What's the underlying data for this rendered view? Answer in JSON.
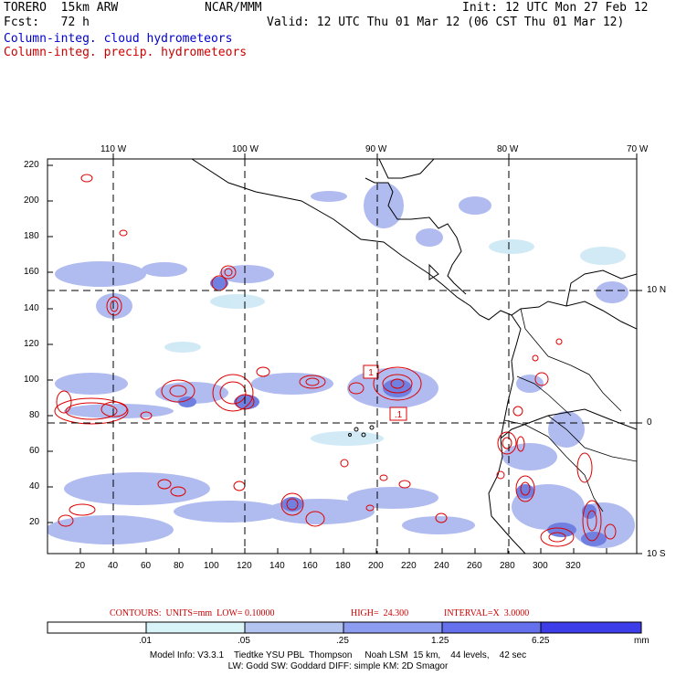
{
  "header": {
    "model_name": "TORERO  15km ARW",
    "org": "NCAR/MMM",
    "init": "Init: 12 UTC Mon 27 Feb 12",
    "fcst": "Fcst:   72 h",
    "valid": "Valid: 12 UTC Thu 01 Mar 12 (06 CST Thu 01 Mar 12)",
    "field_cloud": "Column-integ. cloud hydrometeors",
    "field_precip": "Column-integ. precip. hydrometeors"
  },
  "map": {
    "lon_labels": [
      "110 W",
      "100 W",
      "90 W",
      "80 W",
      "70 W"
    ],
    "lat_labels": [
      "10 N",
      "0",
      "10 S"
    ],
    "x_ticks": [
      "20",
      "40",
      "60",
      "80",
      "100",
      "120",
      "140",
      "160",
      "180",
      "200",
      "220",
      "240",
      "260",
      "280",
      "300",
      "320"
    ],
    "y_ticks": [
      "220",
      "200",
      "180",
      "160",
      "140",
      "120",
      "100",
      "80",
      "60",
      "40",
      "20"
    ],
    "contour_labels": [
      "1",
      ".1"
    ],
    "colors": {
      "light": "#cce8f4",
      "mid": "#a8b4ee",
      "strong": "#7080e0",
      "contour": "#dd0000"
    }
  },
  "contour_info": {
    "contours": "CONTOURS:  UNITS=mm  LOW= 0.10000",
    "high": "HIGH=  24.300",
    "interval": "INTERVAL=X  3.0000"
  },
  "colorbar": {
    "labels": [
      ".01",
      ".05",
      ".25",
      "1.25",
      "6.25"
    ],
    "unit": "mm",
    "colors": [
      "#ffffff",
      "#d8f4f8",
      "#b4c4f0",
      "#8c9cf0",
      "#6470ec",
      "#3c3ce8"
    ]
  },
  "model_info": {
    "line1": "Model Info: V3.3.1    Tiedtke YSU PBL  Thompson     Noah LSM  15 km,    44 levels,    42 sec",
    "line2": "LW: Godd SW: Goddard DIFF: simple KM: 2D Smagor"
  }
}
